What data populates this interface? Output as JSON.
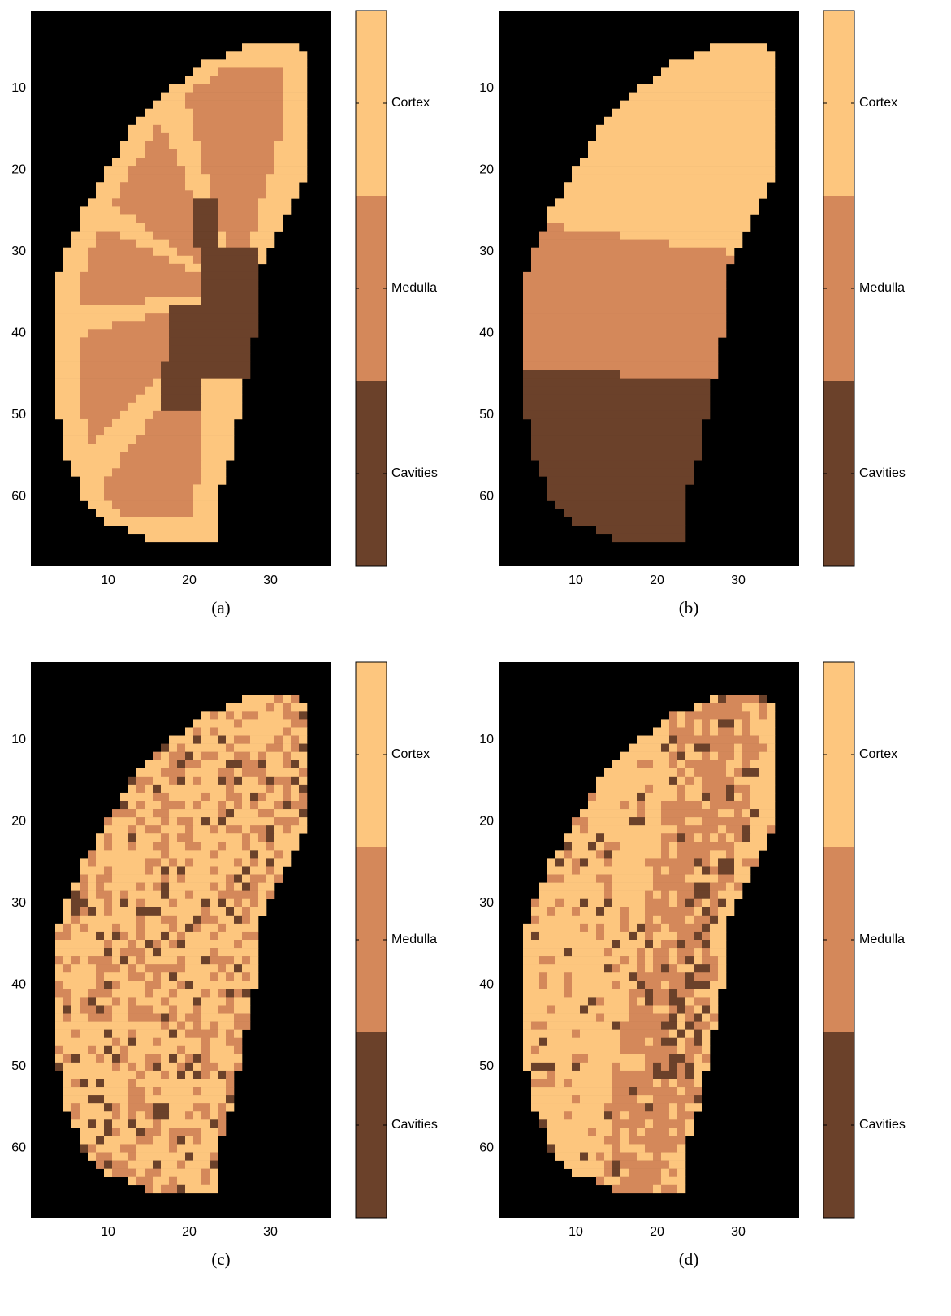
{
  "chart_data": [
    {
      "type": "heatmap",
      "caption": "(a)",
      "xlim": [
        0.5,
        37.5
      ],
      "ylim": [
        68.5,
        0.5
      ],
      "xticks": [
        10,
        20,
        30
      ],
      "yticks": [
        10,
        20,
        30,
        40,
        50,
        60
      ],
      "background": "#000000",
      "colorbar": {
        "categories": [
          "Cortex",
          "Medulla",
          "Cavities"
        ],
        "colors": [
          "#fdc67e",
          "#d4885a",
          "#6b412a"
        ]
      }
    },
    {
      "type": "heatmap",
      "caption": "(b)",
      "xlim": [
        0.5,
        37.5
      ],
      "ylim": [
        68.5,
        0.5
      ],
      "xticks": [
        10,
        20,
        30
      ],
      "yticks": [
        10,
        20,
        30,
        40,
        50,
        60
      ],
      "background": "#000000",
      "colorbar": {
        "categories": [
          "Cortex",
          "Medulla",
          "Cavities"
        ],
        "colors": [
          "#fdc67e",
          "#d4885a",
          "#6b412a"
        ]
      }
    },
    {
      "type": "heatmap",
      "caption": "(c)",
      "xlim": [
        0.5,
        37.5
      ],
      "ylim": [
        68.5,
        0.5
      ],
      "xticks": [
        10,
        20,
        30
      ],
      "yticks": [
        10,
        20,
        30,
        40,
        50,
        60
      ],
      "background": "#000000",
      "colorbar": {
        "categories": [
          "Cortex",
          "Medulla",
          "Cavities"
        ],
        "colors": [
          "#fdc67e",
          "#d4885a",
          "#6b412a"
        ]
      }
    },
    {
      "type": "heatmap",
      "caption": "(d)",
      "xlim": [
        0.5,
        37.5
      ],
      "ylim": [
        68.5,
        0.5
      ],
      "xticks": [
        10,
        20,
        30
      ],
      "yticks": [
        10,
        20,
        30,
        40,
        50,
        60
      ],
      "background": "#000000",
      "colorbar": {
        "categories": [
          "Cortex",
          "Medulla",
          "Cavities"
        ],
        "colors": [
          "#fdc67e",
          "#d4885a",
          "#6b412a"
        ]
      }
    }
  ]
}
